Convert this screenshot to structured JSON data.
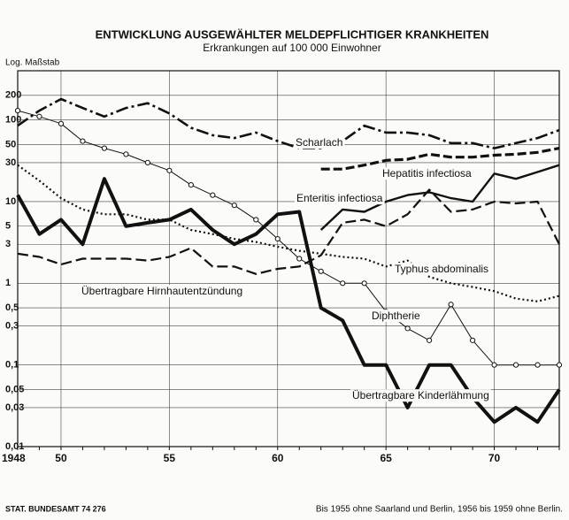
{
  "chart_data": {
    "type": "line",
    "title": "ENTWICKLUNG AUSGEWÄHLTER MELDEPFLICHTIGER KRANKHEITEN",
    "subtitle": "Erkrankungen auf 100 000 Einwohner",
    "y_label": "Log. Maßstab",
    "source": "STAT. BUNDESAMT 74 276",
    "note": "Bis 1955 ohne Saarland und Berlin, 1956 bis 1959 ohne Berlin.",
    "x": [
      1948,
      1949,
      1950,
      1951,
      1952,
      1953,
      1954,
      1955,
      1956,
      1957,
      1958,
      1959,
      1960,
      1961,
      1962,
      1963,
      1964,
      1965,
      1966,
      1967,
      1968,
      1969,
      1970,
      1971,
      1972,
      1973
    ],
    "xlim": [
      1948,
      1973
    ],
    "xticks": [
      1948,
      {
        "value": 1950,
        "label": "50"
      },
      {
        "value": 1955,
        "label": "55"
      },
      {
        "value": 1960,
        "label": "60"
      },
      {
        "value": 1965,
        "label": "65"
      },
      {
        "value": 1970,
        "label": "70"
      }
    ],
    "ylim": [
      0.01,
      400
    ],
    "log_y": true,
    "grid": true,
    "yticks": [
      200,
      100,
      50,
      30,
      10,
      5,
      3,
      1,
      {
        "value": 0.5,
        "label": "0,5"
      },
      {
        "value": 0.3,
        "label": "0,3"
      },
      {
        "value": 0.1,
        "label": "0,1"
      },
      {
        "value": 0.05,
        "label": "0,05"
      },
      {
        "value": 0.03,
        "label": "0,03"
      },
      {
        "value": 0.01,
        "label": "0,01"
      }
    ],
    "series": [
      {
        "name": "Scharlach",
        "color": "#111111",
        "values": [
          85,
          130,
          180,
          140,
          110,
          140,
          160,
          120,
          80,
          65,
          60,
          70,
          55,
          45,
          45,
          55,
          85,
          70,
          70,
          65,
          52,
          52,
          45,
          52,
          60,
          75
        ]
      },
      {
        "name": "Hepatitis infectiosa",
        "color": "#111111",
        "values": [
          null,
          null,
          null,
          null,
          null,
          null,
          null,
          null,
          null,
          null,
          null,
          null,
          null,
          null,
          25,
          25,
          28,
          32,
          33,
          38,
          35,
          35,
          37,
          38,
          40,
          45
        ]
      },
      {
        "name": "Enteritis infectiosa",
        "color": "#111111",
        "values": [
          null,
          null,
          null,
          null,
          null,
          null,
          null,
          null,
          null,
          null,
          null,
          null,
          null,
          null,
          4.5,
          8,
          7.5,
          10,
          12,
          13,
          11,
          10,
          22,
          19,
          23,
          28
        ]
      },
      {
        "name": "Typhus abdominalis",
        "color": "#111111",
        "values": [
          28,
          18,
          11,
          8,
          7,
          7,
          6,
          6,
          4.5,
          4,
          3.5,
          3.2,
          2.8,
          2.5,
          2.3,
          2.1,
          2,
          1.6,
          1.9,
          1.2,
          1,
          0.9,
          0.8,
          0.65,
          0.6,
          0.7
        ]
      },
      {
        "name": "Übertragbare Hirnhautentzündung",
        "color": "#111111",
        "values": [
          2.3,
          2.1,
          1.7,
          2,
          2,
          2,
          1.9,
          2.1,
          2.7,
          1.6,
          1.6,
          1.3,
          1.5,
          1.6,
          2.2,
          5.5,
          6,
          5,
          7,
          14,
          7.5,
          8,
          10,
          9.5,
          10,
          3
        ]
      },
      {
        "name": "Diphtherie",
        "color": "#111111",
        "values": [
          130,
          110,
          90,
          55,
          45,
          38,
          30,
          24,
          16,
          12,
          9,
          6,
          3.5,
          2,
          1.4,
          1,
          1,
          0.45,
          0.28,
          0.2,
          0.55,
          0.2,
          0.1,
          0.1,
          0.1,
          0.1
        ]
      },
      {
        "name": "Übertragbare Kinderlähmung",
        "color": "#111111",
        "values": [
          12,
          4,
          6,
          3,
          19,
          5,
          5.5,
          6,
          8,
          4.5,
          3,
          4,
          7,
          7.5,
          0.5,
          0.35,
          0.1,
          0.1,
          0.03,
          0.1,
          0.1,
          0.04,
          0.02,
          0.03,
          0.02,
          0.05
        ]
      }
    ]
  }
}
